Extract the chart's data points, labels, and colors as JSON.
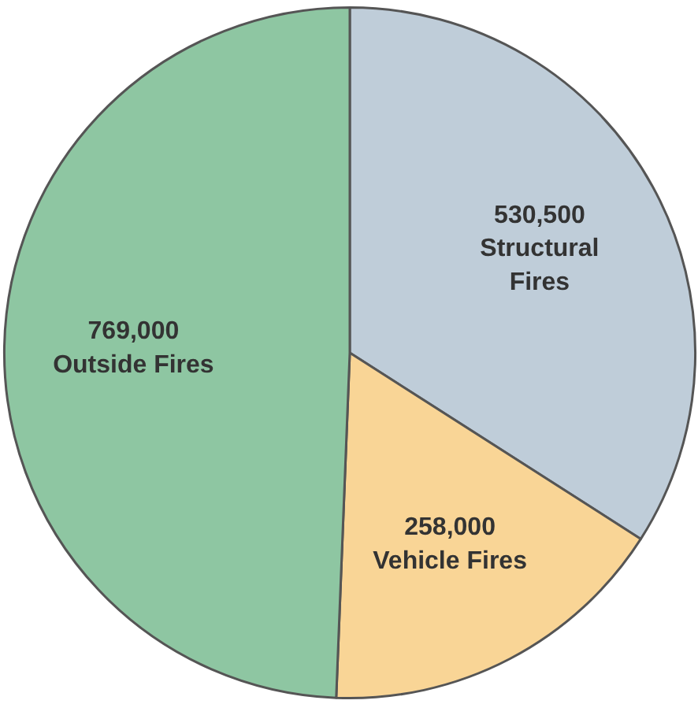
{
  "chart_data": {
    "type": "pie",
    "categories": [
      "Structural Fires",
      "Vehicle Fires",
      "Outside Fires"
    ],
    "values": [
      530500,
      258000,
      769000
    ],
    "value_labels": [
      "530,500",
      "258,000",
      "769,000"
    ],
    "colors": [
      "#bfcdd9",
      "#f9d596",
      "#8ec6a2"
    ]
  }
}
